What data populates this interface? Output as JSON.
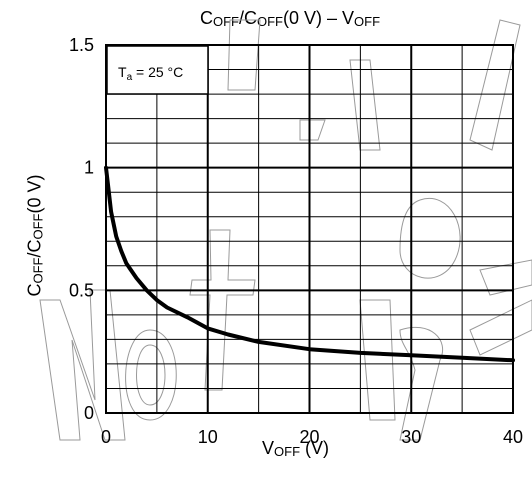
{
  "chart_data": {
    "type": "line",
    "title": {
      "parts": [
        {
          "t": "C"
        },
        {
          "t": "OFF",
          "sub": true
        },
        {
          "t": "/C"
        },
        {
          "t": "OFF",
          "sub": true
        },
        {
          "t": "(0 V) – V"
        },
        {
          "t": "OFF",
          "sub": true
        }
      ]
    },
    "xlabel": {
      "parts": [
        {
          "t": "V"
        },
        {
          "t": "OFF",
          "sub": true
        },
        {
          "t": "   (V)"
        }
      ]
    },
    "ylabel": {
      "parts": [
        {
          "t": "C"
        },
        {
          "t": "OFF",
          "sub": true
        },
        {
          "t": "/C"
        },
        {
          "t": "OFF",
          "sub": true
        },
        {
          "t": "(0 V)"
        }
      ]
    },
    "xlim": [
      0,
      40
    ],
    "ylim": [
      0,
      1.5
    ],
    "x_ticks": [
      0,
      10,
      20,
      30,
      40
    ],
    "x_tick_labels": [
      "0",
      "10",
      "20",
      "30",
      "40"
    ],
    "y_ticks": [
      0,
      0.5,
      1,
      1.5
    ],
    "y_tick_labels": [
      "0",
      "0.5",
      "1",
      "1.5"
    ],
    "grid": {
      "x_minor_step": 5,
      "y_minor_step": 0.1,
      "major_x_step": 10,
      "major_y_step": 0.5
    },
    "annotation": {
      "parts": [
        {
          "t": "T"
        },
        {
          "t": "a",
          "sub": true
        },
        {
          "t": " = 25 °C"
        }
      ]
    },
    "series": [
      {
        "x": [
          0,
          0.2,
          0.5,
          1,
          1.5,
          2,
          3,
          4,
          5,
          6,
          8,
          10,
          12,
          15,
          20,
          25,
          30,
          35,
          40
        ],
        "y": [
          1.0,
          0.93,
          0.82,
          0.72,
          0.66,
          0.61,
          0.55,
          0.5,
          0.46,
          0.43,
          0.39,
          0.345,
          0.32,
          0.29,
          0.26,
          0.245,
          0.235,
          0.225,
          0.215
        ]
      }
    ]
  }
}
